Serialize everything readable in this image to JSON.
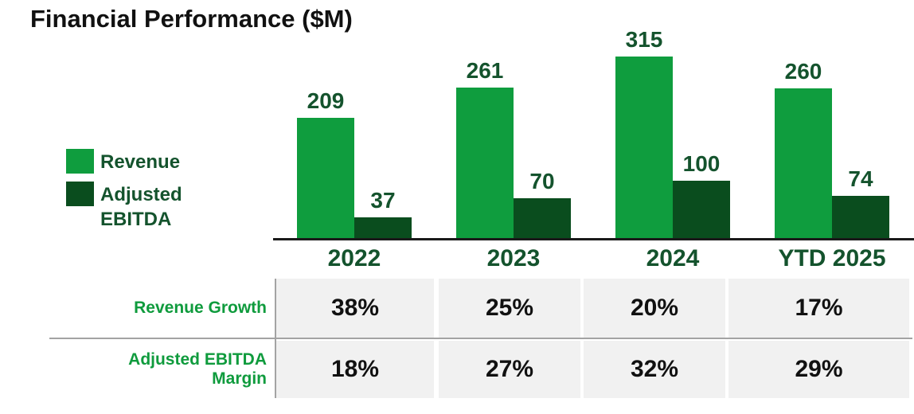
{
  "title": "Financial Performance ($M)",
  "colors": {
    "revenue_bar": "#0f9d3e",
    "ebitda_bar": "#0a4d1e",
    "value_text_dark_green": "#14532d",
    "table_label_green": "#0f9b3d",
    "table_value_text": "#111111",
    "cell_background": "#f1f1f1",
    "divider_gray": "#a3a3a3",
    "axis_black": "#1a1a1a"
  },
  "legend": [
    {
      "label": "Revenue",
      "color": "#0f9d3e"
    },
    {
      "label": "Adjusted EBITDA",
      "color": "#0a4d1e"
    }
  ],
  "chart_data": {
    "type": "bar",
    "title": "Financial Performance ($M)",
    "categories": [
      "2022",
      "2023",
      "2024",
      "YTD 2025"
    ],
    "series": [
      {
        "name": "Revenue",
        "values": [
          209,
          261,
          315,
          260
        ]
      },
      {
        "name": "Adjusted EBITDA",
        "values": [
          37,
          70,
          100,
          74
        ]
      }
    ],
    "data_labels": true,
    "ylim": [
      0,
      315
    ],
    "grid": false,
    "legend_position": "left",
    "table_rows": [
      {
        "label": "Revenue Growth",
        "values": [
          "38%",
          "25%",
          "20%",
          "17%"
        ]
      },
      {
        "label": "Adjusted EBITDA Margin",
        "values": [
          "18%",
          "27%",
          "32%",
          "29%"
        ]
      }
    ]
  }
}
